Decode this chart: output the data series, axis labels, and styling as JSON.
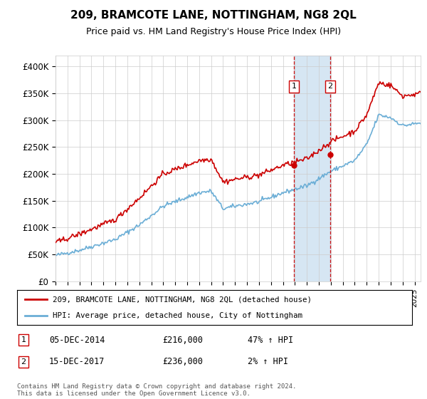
{
  "title": "209, BRAMCOTE LANE, NOTTINGHAM, NG8 2QL",
  "subtitle": "Price paid vs. HM Land Registry's House Price Index (HPI)",
  "ylim": [
    0,
    420000
  ],
  "xlim_start": 1995.0,
  "xlim_end": 2025.5,
  "hpi_color": "#6baed6",
  "price_color": "#cc0000",
  "marker1_x": 2014.92,
  "marker1_y": 216000,
  "marker2_x": 2017.96,
  "marker2_y": 236000,
  "legend_entry1": "209, BRAMCOTE LANE, NOTTINGHAM, NG8 2QL (detached house)",
  "legend_entry2": "HPI: Average price, detached house, City of Nottingham",
  "annotation1_date": "05-DEC-2014",
  "annotation1_price": "£216,000",
  "annotation1_hpi": "47% ↑ HPI",
  "annotation2_date": "15-DEC-2017",
  "annotation2_price": "£236,000",
  "annotation2_hpi": "2% ↑ HPI",
  "footer": "Contains HM Land Registry data © Crown copyright and database right 2024.\nThis data is licensed under the Open Government Licence v3.0.",
  "background_color": "#ffffff"
}
